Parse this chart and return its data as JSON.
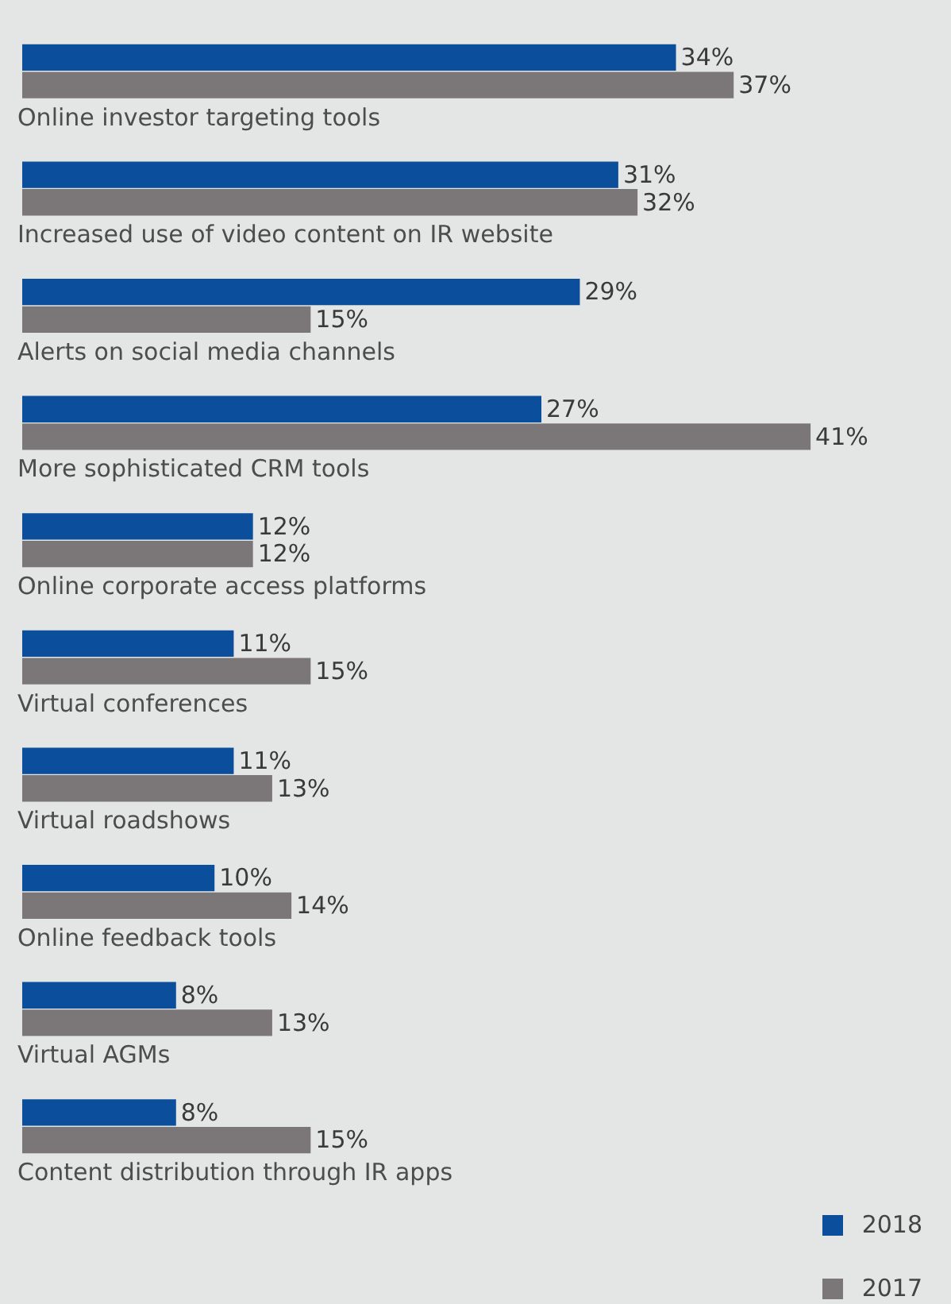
{
  "chart_data": {
    "type": "bar",
    "orientation": "horizontal",
    "legend": "bottom right",
    "data_labels": true,
    "categories": [
      "Online investor targeting tools",
      "Increased use of video content on IR website",
      "Alerts on social media channels",
      "More sophisticated CRM tools",
      "Online corporate access platforms",
      "Virtual conferences",
      "Virtual roadshows",
      "Online feedback tools",
      "Virtual AGMs",
      "Content distribution through IR apps"
    ],
    "series": [
      {
        "name": "2018",
        "color": "#0b4f9c",
        "values": [
          34,
          31,
          29,
          27,
          12,
          11,
          11,
          10,
          8,
          8
        ],
        "value_labels": [
          "34%",
          "31%",
          "29%",
          "27%",
          "12%",
          "11%",
          "11%",
          "10%",
          "8%",
          "8%"
        ]
      },
      {
        "name": "2017",
        "color": "#7b7778",
        "values": [
          37,
          32,
          15,
          41,
          12,
          15,
          13,
          14,
          13,
          15
        ],
        "value_labels": [
          "37%",
          "32%",
          "15%",
          "41%",
          "12%",
          "15%",
          "13%",
          "14%",
          "13%",
          "15%"
        ]
      }
    ]
  }
}
